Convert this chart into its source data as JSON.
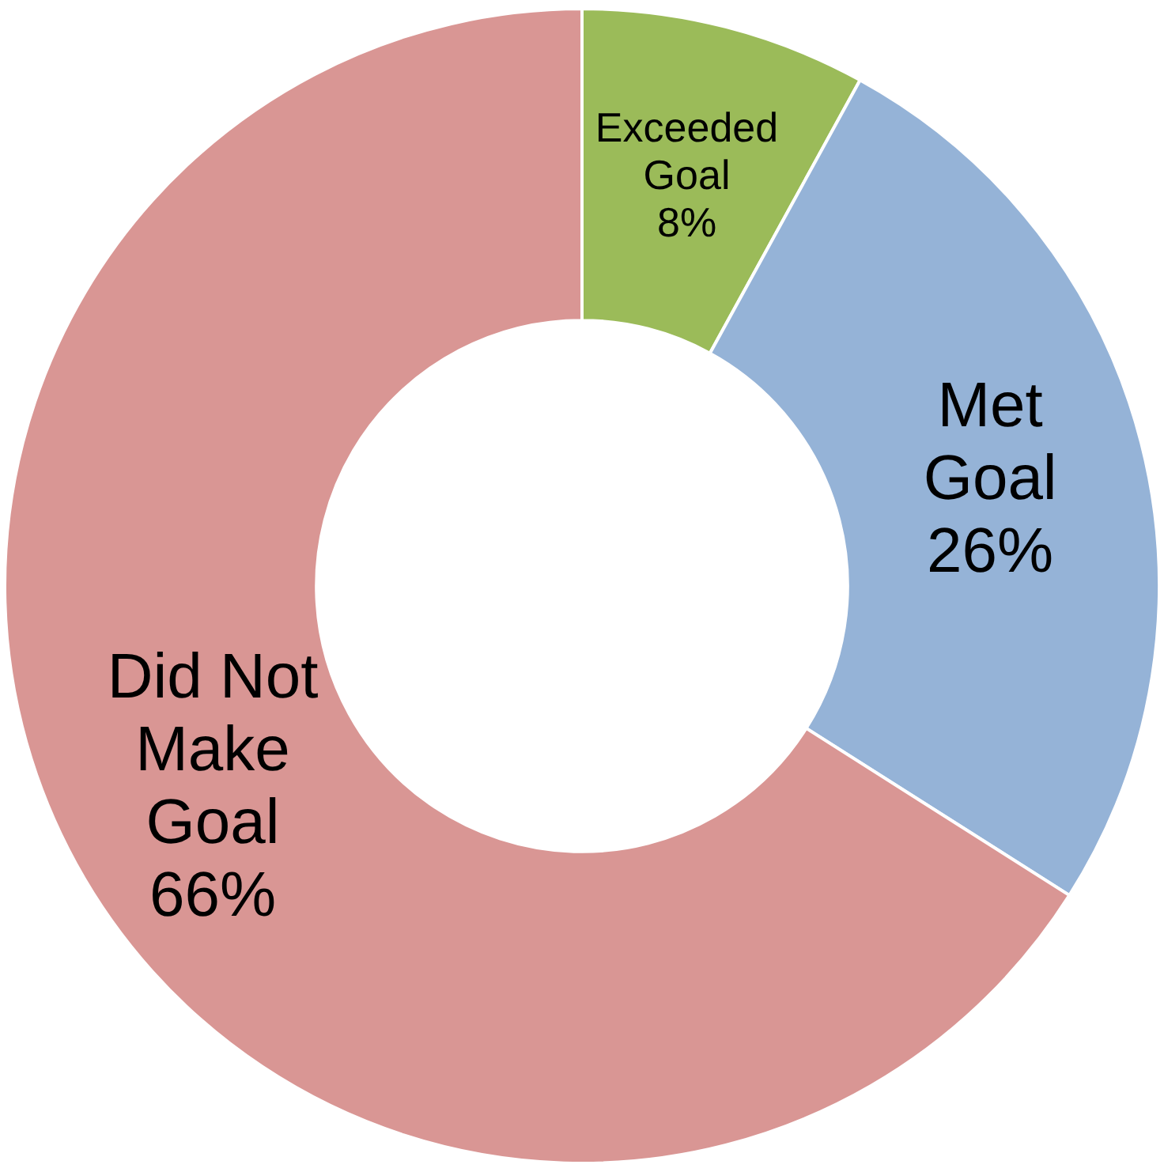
{
  "chart_data": {
    "type": "donut",
    "categories": [
      "Exceeded Goal",
      "Met Goal",
      "Did Not Make Goal"
    ],
    "values": [
      8,
      26,
      66
    ],
    "colors": [
      "#9bbb59",
      "#95b3d7",
      "#d99694"
    ],
    "value_labels": [
      "8%",
      "26%",
      "66%"
    ],
    "legend": false
  }
}
